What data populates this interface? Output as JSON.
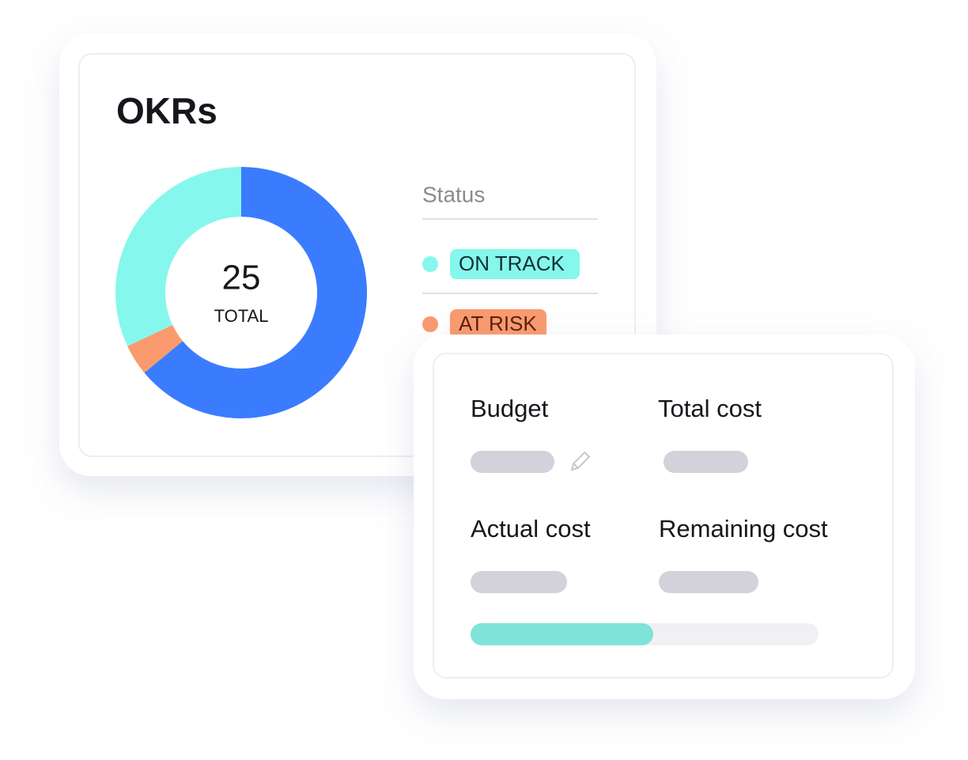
{
  "chart_data": {
    "type": "pie",
    "title": "OKRs",
    "categories": [
      null,
      "AT RISK",
      "ON TRACK"
    ],
    "values": [
      16,
      1,
      8
    ],
    "colors": [
      "#3b7cff",
      "#f99a6f",
      "#86f7ec"
    ],
    "center_value": 25,
    "center_label": "TOTAL",
    "legend_title": "Status"
  },
  "budget_card": {
    "labels": [
      "Budget",
      "Total cost",
      "Actual cost",
      "Remaining cost"
    ],
    "progress": 52.5
  }
}
